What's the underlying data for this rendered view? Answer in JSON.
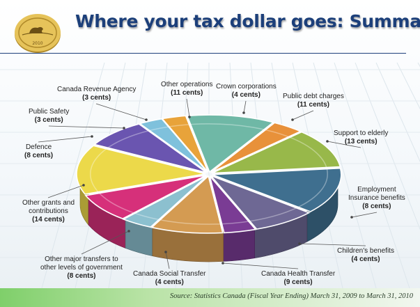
{
  "title": "Where your tax dollar goes:  Summary",
  "source": "Source: Statistics Canada (Fiscal Year Ending) March 31, 2009 to March 31, 2010",
  "coin_text": "2010",
  "chart_data": {
    "type": "pie",
    "title": "Where your tax dollar goes:  Summary",
    "unit": "cents",
    "slices": [
      {
        "name": "Other operations",
        "line1": "Other operations",
        "line2": "",
        "line3": "",
        "value_label": "(11 cents)",
        "value": 11,
        "color": "#6fb8a6"
      },
      {
        "name": "Crown corporations",
        "line1": "Crown corporations",
        "line2": "",
        "line3": "",
        "value_label": "(4 cents)",
        "value": 4,
        "color": "#e8913a"
      },
      {
        "name": "Public debt charges",
        "line1": "Public debt charges",
        "line2": "",
        "line3": "",
        "value_label": "(11 cents)",
        "value": 11,
        "color": "#98b84a"
      },
      {
        "name": "Support to elderly",
        "line1": "Support to elderly",
        "line2": "",
        "line3": "",
        "value_label": "(13 cents)",
        "value": 13,
        "color": "#3f6f8f"
      },
      {
        "name": "Employment Insurance benefits",
        "line1": "Employment",
        "line2": "Insurance benefits",
        "line3": "",
        "value_label": "(8 cents)",
        "value": 8,
        "color": "#6e6894"
      },
      {
        "name": "Children's benefits",
        "line1": "Children's benefits",
        "line2": "",
        "line3": "",
        "value_label": "(4 cents)",
        "value": 4,
        "color": "#7a3c94"
      },
      {
        "name": "Canada Health Transfer",
        "line1": "Canada Health Transfer",
        "line2": "",
        "line3": "",
        "value_label": "(9 cents)",
        "value": 9,
        "color": "#d49b52"
      },
      {
        "name": "Canada Social Transfer",
        "line1": "Canada Social Transfer",
        "line2": "",
        "line3": "",
        "value_label": "(4 cents)",
        "value": 4,
        "color": "#8cc0cf"
      },
      {
        "name": "Other major transfers to other levels of government",
        "line1": "Other major transfers to",
        "line2": "other levels of government",
        "line3": "",
        "value_label": "(8 cents)",
        "value": 8,
        "color": "#d6307a"
      },
      {
        "name": "Other grants and contributions",
        "line1": "Other grants and",
        "line2": "contributions",
        "line3": "",
        "value_label": "(14 cents)",
        "value": 14,
        "color": "#ecd94a"
      },
      {
        "name": "Defence",
        "line1": "Defence",
        "line2": "",
        "line3": "",
        "value_label": "(8 cents)",
        "value": 8,
        "color": "#6a55b0"
      },
      {
        "name": "Public Safety",
        "line1": "Public Safety",
        "line2": "",
        "line3": "",
        "value_label": "(3 cents)",
        "value": 3,
        "color": "#7fc1dc"
      },
      {
        "name": "Canada Revenue Agency",
        "line1": "Canada Revenue Agency",
        "line2": "",
        "line3": "",
        "value_label": "(3 cents)",
        "value": 3,
        "color": "#e8a33a"
      }
    ]
  }
}
